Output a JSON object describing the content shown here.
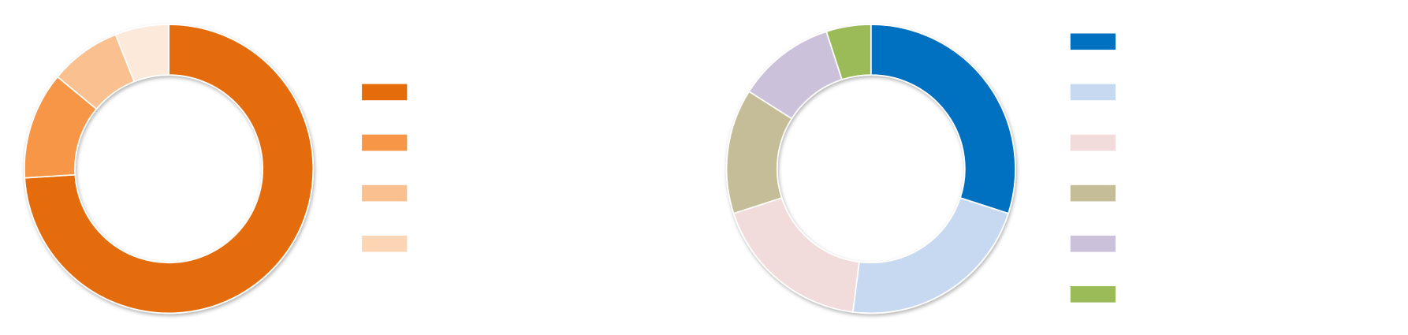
{
  "chart_data": [
    {
      "type": "donut",
      "values": [
        74,
        12,
        8,
        6
      ],
      "colors": [
        "#e46c0a",
        "#f79646",
        "#fac090",
        "#fde9d9"
      ],
      "legend_colors": [
        "#e46c0a",
        "#f79646",
        "#fac090",
        "#fcd5b5"
      ]
    },
    {
      "type": "donut",
      "values": [
        30,
        22,
        18,
        14,
        11,
        5
      ],
      "colors": [
        "#0070c0",
        "#c6d9f1",
        "#f2dcdb",
        "#c4bd97",
        "#ccc1da",
        "#9bbb59"
      ],
      "legend_colors": [
        "#0070c0",
        "#c6d9f1",
        "#f2dcdb",
        "#c4bd97",
        "#ccc1da",
        "#9bbb59"
      ]
    }
  ]
}
